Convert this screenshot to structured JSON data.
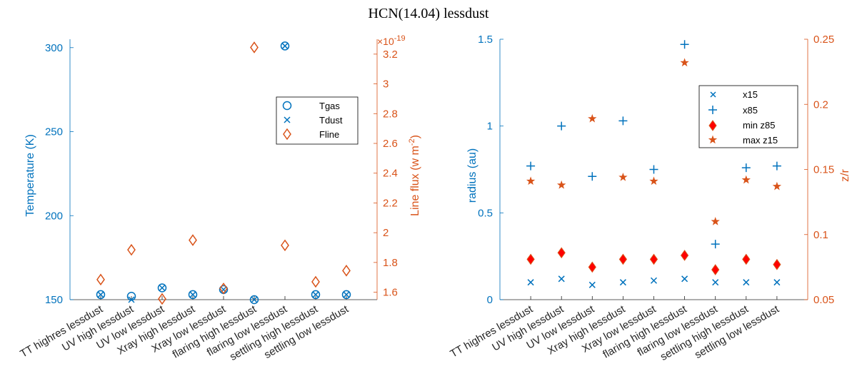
{
  "title": "HCN(14.04) lessdust",
  "colors": {
    "blue": "#0072BD",
    "orange": "#D95319",
    "axis": "#262626",
    "legend_edge": "#000000"
  },
  "chart_data": [
    {
      "type": "scatter",
      "categories": [
        "TT highres lessdust",
        "UV high lessdust",
        "UV low lessdust",
        "Xray high lessdust",
        "Xray low lessdust",
        "flaring high lessdust",
        "flaring low lessdust",
        "settling high lessdust",
        "settling low lessdust"
      ],
      "left_axis": {
        "label": "Temperature (K)",
        "ylim": [
          150,
          305
        ],
        "ticks": [
          150,
          200,
          250,
          300
        ],
        "tick_labels": [
          "150",
          "200",
          "250",
          "300"
        ]
      },
      "right_axis": {
        "label_main": "Line flux (w m",
        "label_sup": "-2",
        "label_end": ")",
        "exponent_label": "×10",
        "exponent_power": "-19",
        "ylim": [
          1.55,
          3.3
        ],
        "ticks": [
          1.6,
          1.8,
          2.0,
          2.2,
          2.4,
          2.6,
          2.8,
          3.0,
          3.2
        ],
        "tick_labels": [
          "1.6",
          "1.8",
          "2",
          "2.2",
          "2.4",
          "2.6",
          "2.8",
          "3",
          "3.2"
        ]
      },
      "series": [
        {
          "name": "Tgas",
          "axis": "left",
          "marker": "circle",
          "values": [
            153,
            152,
            157,
            153,
            156,
            150,
            301,
            153,
            153
          ]
        },
        {
          "name": "Tdust",
          "axis": "left",
          "marker": "x",
          "values": [
            153,
            150,
            157,
            153,
            156,
            150,
            301,
            153,
            153
          ]
        },
        {
          "name": "Fline",
          "axis": "right",
          "marker": "diamond",
          "values": [
            1.685,
            1.885,
            1.555,
            1.95,
            1.625,
            3.245,
            1.915,
            1.67,
            1.745
          ]
        }
      ],
      "legend": [
        "Tgas",
        "Tdust",
        "Fline"
      ],
      "legend_position": "top-right"
    },
    {
      "type": "scatter",
      "categories": [
        "TT highres lessdust",
        "UV high lessdust",
        "UV low lessdust",
        "Xray high lessdust",
        "Xray low lessdust",
        "flaring high lessdust",
        "flaring low lessdust",
        "settling high lessdust",
        "settling low lessdust"
      ],
      "left_axis": {
        "label": "radius (au)",
        "ylim": [
          0,
          1.5
        ],
        "ticks": [
          0,
          0.5,
          1,
          1.5
        ],
        "tick_labels": [
          "0",
          "0.5",
          "1",
          "1.5"
        ]
      },
      "right_axis": {
        "label": "z/r",
        "ylim": [
          0.05,
          0.25
        ],
        "ticks": [
          0.05,
          0.1,
          0.15,
          0.2,
          0.25
        ],
        "tick_labels": [
          "0.05",
          "0.1",
          "0.15",
          "0.2",
          "0.25"
        ]
      },
      "series": [
        {
          "name": "x15",
          "axis": "left",
          "marker": "x",
          "values": [
            0.1,
            0.12,
            0.085,
            0.1,
            0.11,
            0.12,
            0.1,
            0.1,
            0.1
          ]
        },
        {
          "name": "x85",
          "axis": "left",
          "marker": "plus",
          "values": [
            0.77,
            1.0,
            0.71,
            1.03,
            0.75,
            1.47,
            0.32,
            0.76,
            0.77
          ]
        },
        {
          "name": "min z85",
          "axis": "right",
          "marker": "filled-diamond",
          "values": [
            0.081,
            0.086,
            0.075,
            0.081,
            0.081,
            0.084,
            0.073,
            0.081,
            0.077
          ]
        },
        {
          "name": "max z15",
          "axis": "right",
          "marker": "star",
          "values": [
            0.141,
            0.138,
            0.189,
            0.144,
            0.141,
            0.232,
            0.11,
            0.142,
            0.137
          ]
        }
      ],
      "legend": [
        "x15",
        "x85",
        "min z85",
        "max z15"
      ],
      "legend_position": "top-right"
    }
  ]
}
